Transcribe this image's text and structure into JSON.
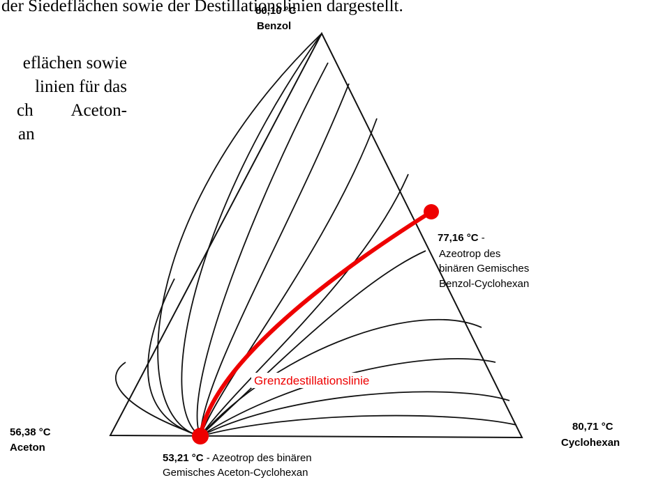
{
  "document": {
    "header_text": "der Siedeflächen sowie der Destillationslinien dargestellt.",
    "side_text": [
      "eflächen sowie",
      "linien für das",
      "ch",
      "Aceton-",
      "an"
    ]
  },
  "vertices": [
    {
      "temperature": "80,10 °C",
      "name": "Benzol"
    },
    {
      "temperature": "56,38 °C",
      "name": "Aceton"
    },
    {
      "temperature": "80,71 °C",
      "name": "Cyclohexan"
    }
  ],
  "azeotropes": [
    {
      "temperature": "77,16 °C",
      "separator": " -",
      "lines": [
        "Azeotrop des",
        "binären Gemisches",
        "Benzol-Cyclohexan"
      ]
    },
    {
      "temperature": "53,21 °C",
      "separator": " - Azeotrop des binären",
      "lines": [
        "Gemisches Aceton-Cyclohexan"
      ]
    }
  ],
  "boundary_label": "Grenzdestillationslinie"
}
